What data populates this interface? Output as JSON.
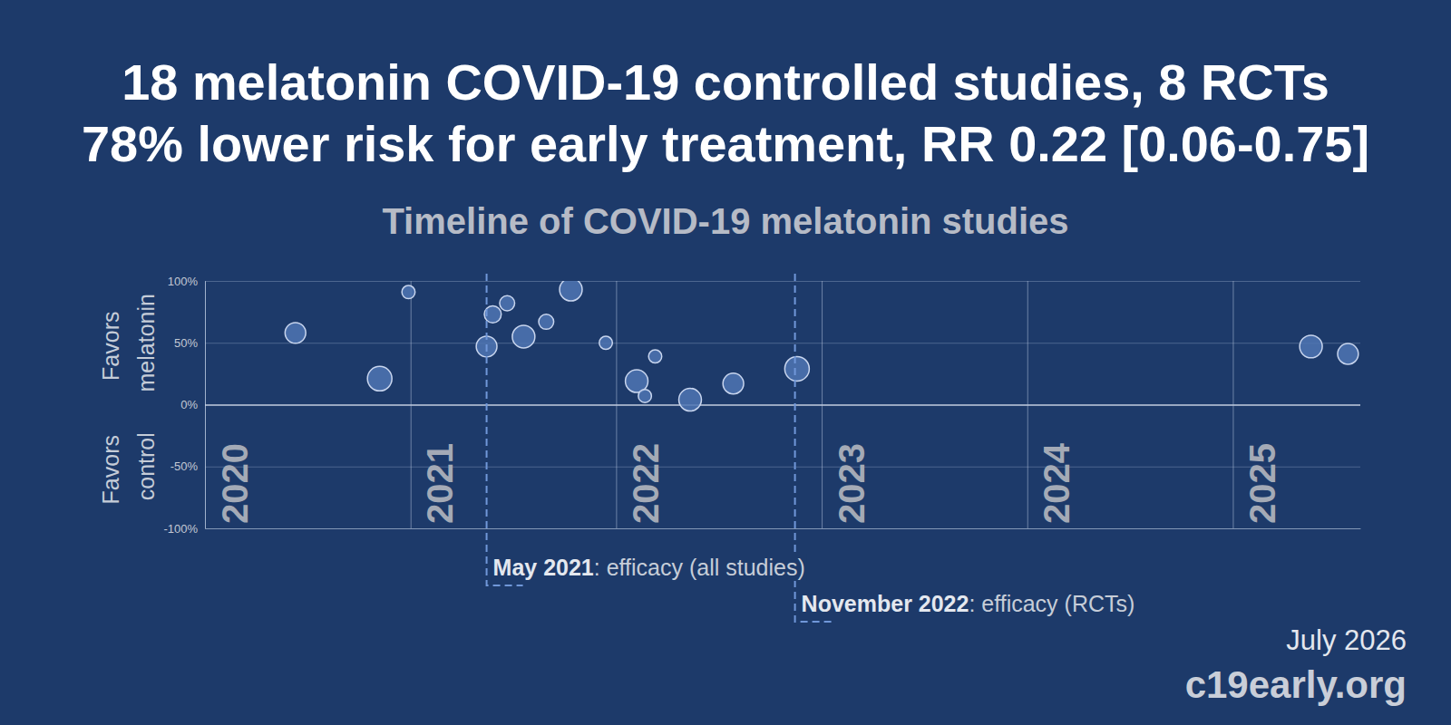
{
  "chart_data": {
    "type": "bubble",
    "headline": [
      "18 melatonin COVID-19 controlled studies, 8 RCTs",
      "78% lower risk for early treatment, RR 0.22 [0.06-0.75]"
    ],
    "title": "Timeline of COVID-19 melatonin studies",
    "ylabel_top": "Favors melatonin",
    "ylabel_bottom": "Favors control",
    "x": [
      2020.44,
      2020.85,
      2020.99,
      2021.37,
      2021.4,
      2021.47,
      2021.55,
      2021.66,
      2021.78,
      2021.95,
      2022.1,
      2022.14,
      2022.19,
      2022.36,
      2022.57,
      2022.88,
      2025.38,
      2025.56
    ],
    "values": [
      58,
      21,
      91,
      47,
      73,
      82,
      55,
      67,
      93,
      50,
      19,
      7,
      39,
      4,
      17,
      29,
      47,
      41
    ],
    "sizes": [
      121,
      169,
      49,
      121,
      81,
      64,
      144,
      64,
      144,
      49,
      144,
      49,
      49,
      144,
      121,
      169,
      144,
      121
    ],
    "color": "#4f76b3",
    "marker": "circle",
    "xlim": [
      2020,
      2025.62
    ],
    "xticks": [
      2020,
      2021,
      2022,
      2023,
      2024,
      2025
    ],
    "ylim": [
      -100,
      100
    ],
    "yticks": [
      {
        "value": -100,
        "label": "-100%"
      },
      {
        "value": -50,
        "label": "-50%"
      },
      {
        "value": 0,
        "label": "0%"
      },
      {
        "value": 50,
        "label": "50%"
      },
      {
        "value": 100,
        "label": "100%"
      }
    ],
    "grid": true,
    "annotations": [
      {
        "x": 2021.37,
        "label": "May 2021",
        "text": ": efficacy (all studies)"
      },
      {
        "x": 2022.87,
        "label": "November 2022",
        "text": ": efficacy (RCTs)"
      }
    ],
    "date": "July 2026",
    "source": "c19early.org"
  }
}
